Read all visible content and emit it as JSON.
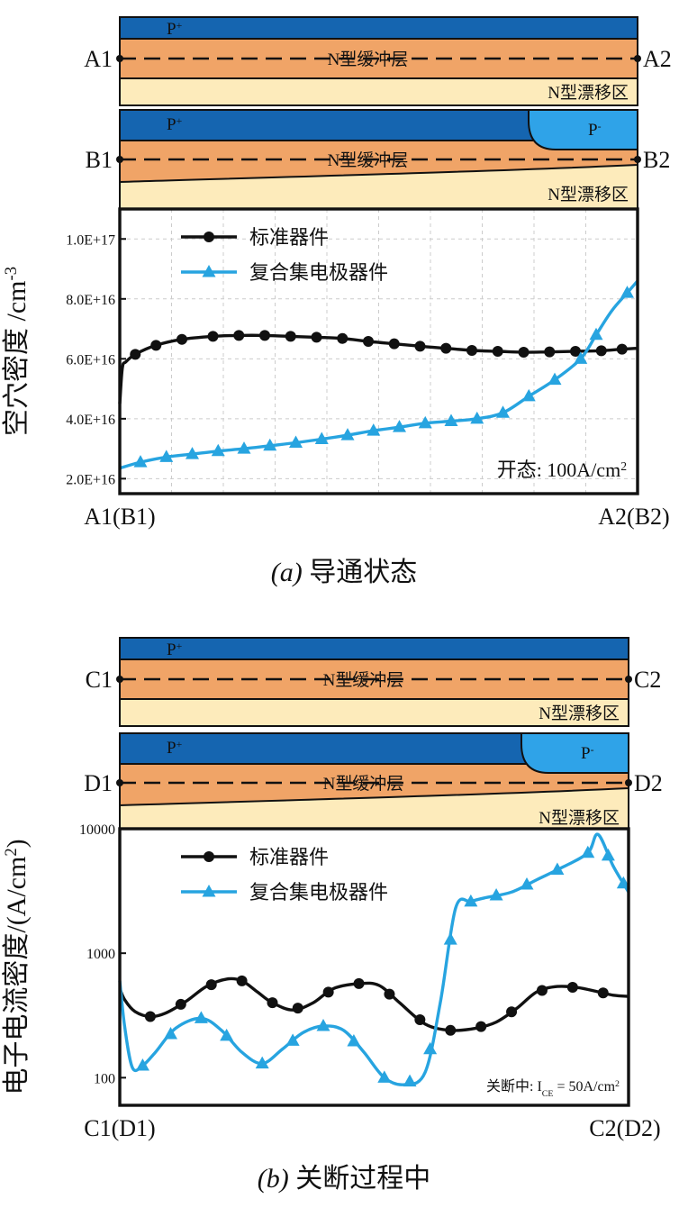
{
  "colors": {
    "p_plus": "#1565b0",
    "p_minus": "#2fa3e8",
    "buffer": "#f0a467",
    "drift": "#fdebbb",
    "standard_series": "#111111",
    "composite_series": "#27a4e0",
    "grid": "#cccccc"
  },
  "panel_a": {
    "caption_letter": "(a)",
    "caption_text": "导通状态",
    "struct1": {
      "p_label": "P",
      "p_sup": "+",
      "buffer_label": "N型缓冲层",
      "drift_label": "N型漂移区",
      "left": "A1",
      "right": "A2"
    },
    "struct2": {
      "p_label": "P",
      "p_sup": "+",
      "pminus_label": "P",
      "pminus_sup": "-",
      "buffer_label": "N型缓冲层",
      "drift_label": "N型漂移区",
      "left": "B1",
      "right": "B2"
    },
    "x_start": "A1(B1)",
    "x_end": "A2(B2)",
    "annotation": "开态: 100A/cm",
    "annotation_sup": "2"
  },
  "panel_b": {
    "caption_letter": "(b)",
    "caption_text": "关断过程中",
    "struct1": {
      "p_label": "P",
      "p_sup": "+",
      "buffer_label": "N型缓冲层",
      "drift_label": "N型漂移区",
      "left": "C1",
      "right": "C2"
    },
    "struct2": {
      "p_label": "P",
      "p_sup": "+",
      "pminus_label": "P",
      "pminus_sup": "-",
      "buffer_label": "N型缓冲层",
      "drift_label": "N型漂移区",
      "left": "D1",
      "right": "D2"
    },
    "x_start": "C1(D1)",
    "x_end": "C2(D2)",
    "annotation_prefix": "关断中: I",
    "annotation_sub": "CE",
    "annotation_suffix": " = 50A/cm",
    "annotation_sup": "2"
  },
  "chart_data": [
    {
      "type": "line",
      "ylabel": "空穴密度 /cm",
      "ylabel_sup": "-3",
      "yscale": "linear",
      "ylim": [
        1.5e+16,
        1.1e+17
      ],
      "xlim": [
        0,
        1
      ],
      "yticks": [
        {
          "v": 2e+16,
          "label": "2.0E+16"
        },
        {
          "v": 4e+16,
          "label": "4.0E+16"
        },
        {
          "v": 6e+16,
          "label": "6.0E+16"
        },
        {
          "v": 8e+16,
          "label": "8.0E+16"
        },
        {
          "v": 1e+17,
          "label": "1.0E+17"
        }
      ],
      "grid": true,
      "legend_position": "top-left",
      "series": [
        {
          "name": "标准器件",
          "marker": "circle",
          "x": [
            0,
            0.005,
            0.012,
            0.03,
            0.07,
            0.12,
            0.18,
            0.23,
            0.28,
            0.33,
            0.38,
            0.43,
            0.48,
            0.53,
            0.58,
            0.63,
            0.68,
            0.73,
            0.78,
            0.83,
            0.88,
            0.93,
            0.97,
            1.0
          ],
          "y": [
            4.5e+16,
            5.7e+16,
            5.9e+16,
            6.15e+16,
            6.45e+16,
            6.65e+16,
            6.75e+16,
            6.78e+16,
            6.78e+16,
            6.75e+16,
            6.72e+16,
            6.68e+16,
            6.58e+16,
            6.5e+16,
            6.42e+16,
            6.35e+16,
            6.28e+16,
            6.25e+16,
            6.22e+16,
            6.23e+16,
            6.25e+16,
            6.27e+16,
            6.32e+16,
            6.35e+16
          ],
          "marker_x": [
            0.03,
            0.07,
            0.12,
            0.18,
            0.23,
            0.28,
            0.33,
            0.38,
            0.43,
            0.48,
            0.53,
            0.58,
            0.63,
            0.68,
            0.73,
            0.78,
            0.83,
            0.88,
            0.93,
            0.97
          ]
        },
        {
          "name": "复合集电极器件",
          "marker": "triangle",
          "x": [
            0,
            0.04,
            0.09,
            0.14,
            0.19,
            0.24,
            0.29,
            0.34,
            0.39,
            0.44,
            0.49,
            0.54,
            0.59,
            0.64,
            0.69,
            0.74,
            0.79,
            0.84,
            0.89,
            0.92,
            0.95,
            0.98,
            1.0
          ],
          "y": [
            2.35e+16,
            2.55e+16,
            2.72e+16,
            2.82e+16,
            2.92e+16,
            3e+16,
            3.1e+16,
            3.2e+16,
            3.32e+16,
            3.45e+16,
            3.6e+16,
            3.72e+16,
            3.85e+16,
            3.92e+16,
            4e+16,
            4.2e+16,
            4.75e+16,
            5.3e+16,
            6e+16,
            6.8e+16,
            7.6e+16,
            8.2e+16,
            8.6e+16
          ],
          "marker_x": [
            0.04,
            0.09,
            0.14,
            0.19,
            0.24,
            0.29,
            0.34,
            0.39,
            0.44,
            0.49,
            0.54,
            0.59,
            0.64,
            0.69,
            0.74,
            0.79,
            0.84,
            0.89,
            0.92,
            0.98
          ]
        }
      ]
    },
    {
      "type": "line",
      "ylabel": "电子电流密度/(A/cm",
      "ylabel_sup": "2",
      "ylabel_tail": ")",
      "yscale": "log",
      "ylim": [
        60,
        10000
      ],
      "xlim": [
        0,
        1
      ],
      "yticks": [
        {
          "v": 100,
          "label": "100"
        },
        {
          "v": 1000,
          "label": "1000"
        },
        {
          "v": 10000,
          "label": "10000"
        }
      ],
      "grid": false,
      "legend_position": "top-left",
      "series": [
        {
          "name": "标准器件",
          "marker": "circle",
          "x": [
            0,
            0.01,
            0.03,
            0.06,
            0.09,
            0.13,
            0.17,
            0.21,
            0.24,
            0.27,
            0.3,
            0.34,
            0.38,
            0.42,
            0.47,
            0.51,
            0.55,
            0.6,
            0.65,
            0.7,
            0.74,
            0.78,
            0.82,
            0.86,
            0.9,
            0.94,
            0.97,
            1.0
          ],
          "y": [
            520,
            420,
            340,
            310,
            330,
            410,
            540,
            620,
            600,
            490,
            400,
            350,
            400,
            520,
            570,
            550,
            400,
            270,
            240,
            250,
            280,
            360,
            490,
            540,
            530,
            490,
            460,
            450
          ],
          "marker_x": [
            0.06,
            0.12,
            0.18,
            0.24,
            0.3,
            0.35,
            0.41,
            0.47,
            0.53,
            0.59,
            0.65,
            0.71,
            0.77,
            0.83,
            0.89,
            0.95
          ]
        },
        {
          "name": "复合集电极器件",
          "marker": "triangle",
          "x": [
            0,
            0.01,
            0.025,
            0.045,
            0.07,
            0.11,
            0.16,
            0.2,
            0.24,
            0.28,
            0.32,
            0.36,
            0.4,
            0.44,
            0.48,
            0.52,
            0.56,
            0.6,
            0.63,
            0.66,
            0.69,
            0.72,
            0.77,
            0.82,
            0.87,
            0.92,
            0.94,
            0.97,
            1.0
          ],
          "y": [
            600,
            250,
            120,
            125,
            160,
            250,
            300,
            240,
            160,
            130,
            170,
            230,
            260,
            240,
            160,
            100,
            88,
            110,
            400,
            2300,
            2600,
            2800,
            3100,
            3900,
            4900,
            6400,
            9000,
            5000,
            3100
          ],
          "marker_x": [
            0.045,
            0.1,
            0.16,
            0.21,
            0.28,
            0.34,
            0.4,
            0.46,
            0.52,
            0.57,
            0.61,
            0.65,
            0.69,
            0.74,
            0.8,
            0.86,
            0.92,
            0.96,
            0.99
          ]
        }
      ]
    }
  ]
}
